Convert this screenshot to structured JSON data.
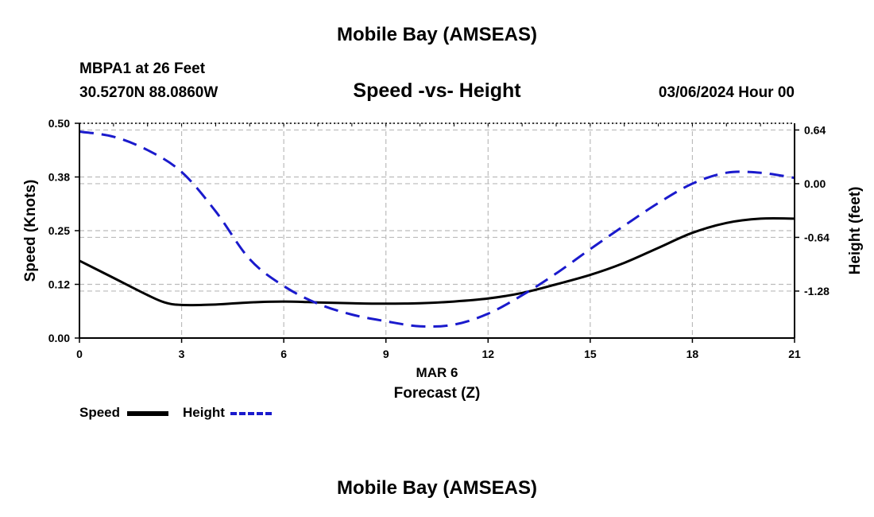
{
  "page": {
    "title": "Mobile Bay (AMSEAS)",
    "station": "MBPA1 at 26 Feet",
    "coords": "30.5270N  88.0860W",
    "datetime": "03/06/2024 Hour 00",
    "bottom_title": "Mobile Bay (AMSEAS)"
  },
  "legend": {
    "speed_label": "Speed",
    "height_label": "Height"
  },
  "colors": {
    "speed": "#000000",
    "height": "#1a1acc",
    "grid": "#bbbbbb"
  },
  "chart_data": {
    "type": "line",
    "title": "Speed -vs- Height",
    "xlabel": "Forecast (Z)",
    "xlabel_date": "MAR 6",
    "ylabel": "Speed (Knots)",
    "y2label": "Height (feet)",
    "xlim": [
      0,
      21
    ],
    "ylim": [
      0,
      0.5
    ],
    "y2lim": [
      -1.84,
      0.72
    ],
    "x_ticks": [
      0,
      3,
      6,
      9,
      12,
      15,
      18,
      21
    ],
    "x_tick_labels": [
      "0",
      "3",
      "6",
      "9",
      "12",
      "15",
      "18",
      "21"
    ],
    "y_ticks": [
      0,
      0.125,
      0.25,
      0.375,
      0.5
    ],
    "y_tick_labels": [
      "0.00",
      "0.12",
      "0.25",
      "0.38",
      "0.50"
    ],
    "y2_ticks": [
      0.64,
      0,
      -0.64,
      -1.28
    ],
    "y2_tick_labels": [
      "0.64",
      "0.00",
      "-0.64",
      "-1.28"
    ],
    "grid": true,
    "series": [
      {
        "name": "Speed",
        "axis": "left",
        "style": "solid",
        "x": [
          0,
          1,
          2,
          2.5,
          3,
          4,
          5,
          6,
          7,
          8,
          9,
          10,
          11,
          12,
          13,
          14,
          15,
          16,
          17,
          18,
          19,
          20,
          21
        ],
        "values": [
          0.18,
          0.14,
          0.1,
          0.083,
          0.077,
          0.078,
          0.083,
          0.085,
          0.083,
          0.081,
          0.08,
          0.081,
          0.085,
          0.092,
          0.105,
          0.125,
          0.147,
          0.175,
          0.21,
          0.245,
          0.268,
          0.278,
          0.278
        ]
      },
      {
        "name": "Height",
        "axis": "right",
        "style": "dashed",
        "x": [
          0,
          1,
          2,
          3,
          4,
          5,
          6,
          7,
          8,
          9,
          10,
          11,
          12,
          13,
          14,
          15,
          16,
          17,
          18,
          19,
          20,
          21
        ],
        "values": [
          0.62,
          0.56,
          0.4,
          0.14,
          -0.33,
          -0.9,
          -1.22,
          -1.43,
          -1.56,
          -1.64,
          -1.7,
          -1.68,
          -1.55,
          -1.33,
          -1.07,
          -0.78,
          -0.5,
          -0.23,
          0.0,
          0.13,
          0.13,
          0.07
        ]
      }
    ]
  }
}
